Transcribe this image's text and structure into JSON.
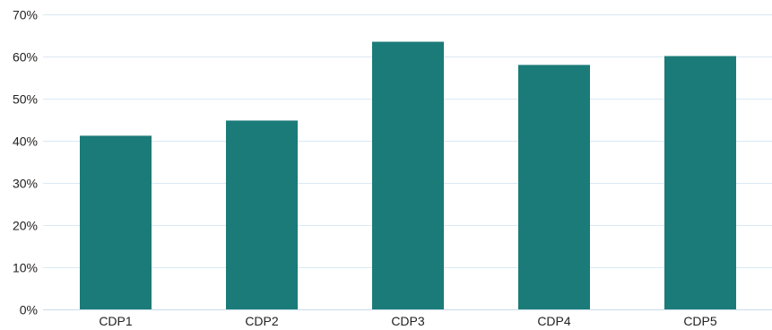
{
  "chart_data": {
    "type": "bar",
    "title": "",
    "xlabel": "",
    "ylabel": "",
    "categories": [
      "CDP1",
      "CDP2",
      "CDP3",
      "CDP4",
      "CDP5"
    ],
    "values": [
      41.2,
      44.8,
      63.5,
      58.0,
      60.1
    ],
    "ylim": [
      0,
      70
    ],
    "yticks": [
      0,
      10,
      20,
      30,
      40,
      50,
      60,
      70
    ],
    "ytick_labels": [
      "0%",
      "10%",
      "20%",
      "30%",
      "40%",
      "50%",
      "60%",
      "70%"
    ],
    "grid": true,
    "legend": "none",
    "bar_color": "#1b7b78",
    "grid_color": "#dbe9f3"
  }
}
